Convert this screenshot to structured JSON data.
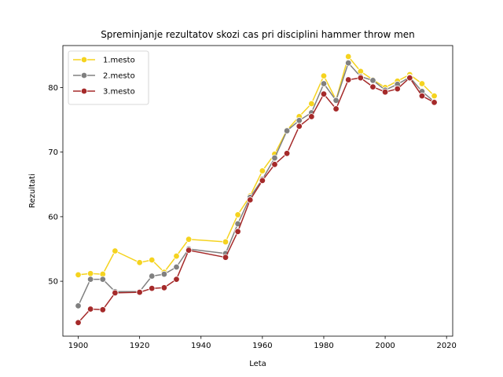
{
  "chart_data": {
    "type": "line",
    "title": "Spreminjanje rezultatov skozi cas pri disciplini hammer throw men",
    "xlabel": "Leta",
    "ylabel": "Rezultati",
    "xlim": [
      1895,
      2022
    ],
    "ylim": [
      41.5,
      86.5
    ],
    "xticks": [
      1900,
      1920,
      1940,
      1960,
      1980,
      2000,
      2020
    ],
    "yticks": [
      50,
      60,
      70,
      80
    ],
    "legend_position": "top-left",
    "x": [
      1900,
      1904,
      1908,
      1912,
      1920,
      1924,
      1928,
      1932,
      1936,
      1948,
      1952,
      1956,
      1960,
      1964,
      1968,
      1972,
      1976,
      1980,
      1984,
      1988,
      1992,
      1996,
      2000,
      2004,
      2008,
      2012,
      2016
    ],
    "series": [
      {
        "name": "1.mesto",
        "color": "#f5d31f",
        "values": [
          51.0,
          51.2,
          51.1,
          54.7,
          52.9,
          53.3,
          51.4,
          53.9,
          56.5,
          56.1,
          60.3,
          63.2,
          67.1,
          69.7,
          73.4,
          75.5,
          77.5,
          81.8,
          78.1,
          84.8,
          82.5,
          81.2,
          80.0,
          81.0,
          82.0,
          80.6,
          78.7
        ]
      },
      {
        "name": "2.mesto",
        "color": "#808080",
        "values": [
          46.2,
          50.3,
          50.3,
          48.4,
          48.4,
          50.8,
          51.1,
          52.2,
          55.0,
          54.3,
          58.9,
          63.0,
          65.8,
          69.1,
          73.3,
          74.9,
          76.1,
          80.6,
          78.0,
          83.8,
          81.7,
          81.1,
          79.6,
          80.5,
          81.6,
          79.4,
          77.8
        ]
      },
      {
        "name": "3.mesto",
        "color": "#a52a2a",
        "values": [
          43.6,
          45.7,
          45.6,
          48.2,
          48.3,
          48.9,
          49.0,
          50.3,
          54.8,
          53.7,
          57.7,
          62.6,
          65.6,
          68.1,
          69.8,
          74.0,
          75.5,
          79.0,
          76.7,
          81.2,
          81.5,
          80.1,
          79.3,
          79.8,
          81.5,
          78.7,
          77.7
        ]
      }
    ]
  }
}
